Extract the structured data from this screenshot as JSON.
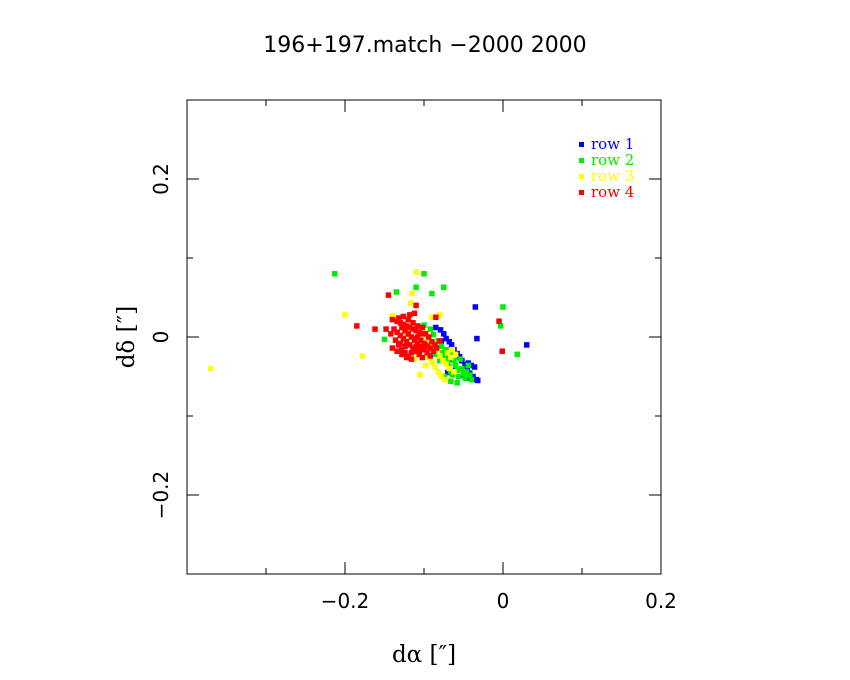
{
  "chart_data": {
    "type": "scatter",
    "title": "196+197.match   −2000 2000",
    "xlabel": "dα [″]",
    "ylabel": "dδ [″]",
    "xlim": [
      -0.4,
      0.2
    ],
    "ylim": [
      -0.3,
      0.3
    ],
    "xticks": [
      -0.2,
      0,
      0.2
    ],
    "xtick_labels": [
      "−0.2",
      "0",
      "0.2"
    ],
    "yticks": [
      -0.2,
      0,
      0.2
    ],
    "ytick_labels": [
      "−0.2",
      "0",
      "0.2"
    ],
    "grid": false,
    "legend_position": "top-right",
    "series": [
      {
        "name": "row 1",
        "color": "#0000ff",
        "points": [
          [
            -0.085,
            0.012
          ],
          [
            -0.079,
            0.009
          ],
          [
            -0.075,
            0.004
          ],
          [
            -0.072,
            -0.002
          ],
          [
            -0.068,
            -0.006
          ],
          [
            -0.065,
            -0.01
          ],
          [
            -0.062,
            -0.016
          ],
          [
            -0.058,
            -0.021
          ],
          [
            -0.055,
            -0.025
          ],
          [
            -0.052,
            -0.03
          ],
          [
            -0.048,
            -0.035
          ],
          [
            -0.045,
            -0.041
          ],
          [
            -0.042,
            -0.046
          ],
          [
            -0.04,
            -0.036
          ],
          [
            -0.038,
            -0.05
          ],
          [
            -0.036,
            -0.038
          ],
          [
            -0.034,
            -0.054
          ],
          [
            -0.032,
            -0.055
          ],
          [
            -0.035,
            0.038
          ],
          [
            -0.033,
            -0.002
          ],
          [
            0.03,
            -0.01
          ],
          [
            -0.07,
            -0.045
          ],
          [
            -0.06,
            -0.04
          ],
          [
            -0.05,
            -0.048
          ],
          [
            -0.046,
            -0.052
          ],
          [
            -0.044,
            -0.033
          ],
          [
            -0.066,
            -0.028
          ],
          [
            -0.078,
            -0.005
          ]
        ]
      },
      {
        "name": "row 2",
        "color": "#00ee00",
        "points": [
          [
            -0.213,
            0.08
          ],
          [
            -0.1,
            0.08
          ],
          [
            -0.11,
            0.063
          ],
          [
            -0.075,
            0.063
          ],
          [
            -0.135,
            0.057
          ],
          [
            -0.09,
            0.055
          ],
          [
            -0.0,
            0.038
          ],
          [
            -0.15,
            -0.003
          ],
          [
            -0.003,
            0.014
          ],
          [
            0.018,
            -0.022
          ],
          [
            -0.1,
            0.015
          ],
          [
            -0.092,
            0.01
          ],
          [
            -0.088,
            0.003
          ],
          [
            -0.082,
            -0.005
          ],
          [
            -0.078,
            -0.012
          ],
          [
            -0.076,
            -0.02
          ],
          [
            -0.073,
            -0.026
          ],
          [
            -0.07,
            -0.032
          ],
          [
            -0.068,
            -0.038
          ],
          [
            -0.066,
            -0.044
          ],
          [
            -0.064,
            -0.048
          ],
          [
            -0.062,
            -0.03
          ],
          [
            -0.06,
            -0.036
          ],
          [
            -0.058,
            -0.042
          ],
          [
            -0.056,
            -0.05
          ],
          [
            -0.054,
            -0.028
          ],
          [
            -0.052,
            -0.04
          ],
          [
            -0.05,
            -0.046
          ],
          [
            -0.048,
            -0.052
          ],
          [
            -0.046,
            -0.044
          ],
          [
            -0.044,
            -0.036
          ],
          [
            -0.042,
            -0.048
          ],
          [
            -0.04,
            -0.054
          ],
          [
            -0.074,
            -0.05
          ],
          [
            -0.066,
            -0.056
          ],
          [
            -0.058,
            -0.058
          ],
          [
            -0.086,
            -0.022
          ],
          [
            -0.08,
            -0.03
          ],
          [
            -0.072,
            -0.016
          ],
          [
            -0.064,
            -0.022
          ]
        ]
      },
      {
        "name": "row 3",
        "color": "#ffff00",
        "points": [
          [
            -0.37,
            -0.04
          ],
          [
            -0.11,
            0.082
          ],
          [
            -0.115,
            0.055
          ],
          [
            -0.117,
            0.043
          ],
          [
            -0.2,
            0.028
          ],
          [
            -0.14,
            0.027
          ],
          [
            -0.178,
            -0.024
          ],
          [
            -0.105,
            -0.048
          ],
          [
            -0.09,
            0.025
          ],
          [
            -0.08,
            0.028
          ],
          [
            -0.1,
            0.005
          ],
          [
            -0.096,
            -0.002
          ],
          [
            -0.092,
            -0.008
          ],
          [
            -0.088,
            -0.014
          ],
          [
            -0.084,
            -0.018
          ],
          [
            -0.08,
            -0.024
          ],
          [
            -0.076,
            -0.03
          ],
          [
            -0.072,
            -0.034
          ],
          [
            -0.068,
            -0.04
          ],
          [
            -0.064,
            -0.016
          ],
          [
            -0.06,
            -0.022
          ],
          [
            -0.094,
            -0.026
          ],
          [
            -0.09,
            -0.032
          ],
          [
            -0.086,
            -0.038
          ],
          [
            -0.082,
            -0.044
          ],
          [
            -0.078,
            -0.05
          ],
          [
            -0.074,
            -0.054
          ],
          [
            -0.07,
            -0.02
          ],
          [
            -0.066,
            -0.026
          ],
          [
            -0.104,
            -0.012
          ],
          [
            -0.108,
            -0.02
          ],
          [
            -0.112,
            -0.028
          ],
          [
            -0.062,
            -0.044
          ],
          [
            -0.098,
            -0.036
          ],
          [
            -0.12,
            0.01
          ],
          [
            -0.124,
            0.002
          ]
        ]
      },
      {
        "name": "row 4",
        "color": "#ff0000",
        "points": [
          [
            -0.145,
            0.053
          ],
          [
            -0.185,
            0.014
          ],
          [
            -0.162,
            0.01
          ],
          [
            -0.148,
            0.01
          ],
          [
            -0.11,
            0.04
          ],
          [
            -0.085,
            0.025
          ],
          [
            -0.005,
            0.02
          ],
          [
            -0.001,
            -0.018
          ],
          [
            -0.08,
            -0.005
          ],
          [
            -0.14,
            0.022
          ],
          [
            -0.134,
            0.02
          ],
          [
            -0.13,
            0.018
          ],
          [
            -0.126,
            0.016
          ],
          [
            -0.122,
            0.014
          ],
          [
            -0.118,
            0.012
          ],
          [
            -0.114,
            0.01
          ],
          [
            -0.11,
            0.008
          ],
          [
            -0.106,
            0.006
          ],
          [
            -0.102,
            0.004
          ],
          [
            -0.138,
            0.01
          ],
          [
            -0.134,
            0.006
          ],
          [
            -0.13,
            0.002
          ],
          [
            -0.126,
            -0.002
          ],
          [
            -0.122,
            -0.006
          ],
          [
            -0.118,
            -0.01
          ],
          [
            -0.114,
            -0.014
          ],
          [
            -0.11,
            -0.018
          ],
          [
            -0.106,
            -0.022
          ],
          [
            -0.102,
            -0.026
          ],
          [
            -0.136,
            -0.004
          ],
          [
            -0.132,
            -0.01
          ],
          [
            -0.128,
            -0.016
          ],
          [
            -0.124,
            -0.02
          ],
          [
            -0.12,
            -0.024
          ],
          [
            -0.116,
            -0.028
          ],
          [
            -0.112,
            -0.004
          ],
          [
            -0.108,
            -0.008
          ],
          [
            -0.104,
            -0.012
          ],
          [
            -0.1,
            -0.016
          ],
          [
            -0.096,
            -0.02
          ],
          [
            -0.092,
            -0.024
          ],
          [
            -0.128,
            0.012
          ],
          [
            -0.124,
            0.008
          ],
          [
            -0.12,
            0.004
          ],
          [
            -0.116,
            0.0
          ],
          [
            -0.112,
            -0.002
          ],
          [
            -0.108,
            0.0
          ],
          [
            -0.104,
            -0.004
          ],
          [
            -0.1,
            -0.008
          ],
          [
            -0.096,
            -0.012
          ],
          [
            -0.092,
            -0.014
          ],
          [
            -0.088,
            -0.018
          ],
          [
            -0.132,
            0.024
          ],
          [
            -0.126,
            0.026
          ],
          [
            -0.12,
            0.022
          ],
          [
            -0.114,
            0.018
          ],
          [
            -0.108,
            0.014
          ],
          [
            -0.102,
            0.012
          ],
          [
            -0.098,
            0.004
          ],
          [
            -0.094,
            0.0
          ],
          [
            -0.14,
            -0.014
          ],
          [
            -0.134,
            -0.018
          ],
          [
            -0.128,
            -0.022
          ],
          [
            -0.122,
            -0.026
          ],
          [
            -0.116,
            -0.02
          ],
          [
            -0.11,
            -0.012
          ],
          [
            -0.104,
            -0.016
          ],
          [
            -0.098,
            -0.01
          ],
          [
            -0.09,
            -0.006
          ],
          [
            -0.086,
            -0.01
          ],
          [
            -0.084,
            -0.014
          ],
          [
            -0.142,
            0.004
          ],
          [
            -0.118,
            0.028
          ],
          [
            -0.112,
            0.03
          ],
          [
            -0.124,
            -0.012
          ],
          [
            -0.13,
            -0.008
          ]
        ]
      }
    ]
  }
}
